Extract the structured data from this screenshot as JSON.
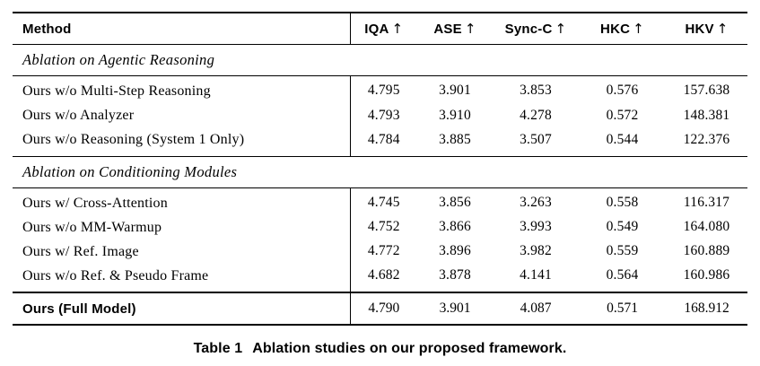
{
  "table": {
    "columns": {
      "method_label": "Method",
      "metrics": [
        {
          "label": "IQA",
          "arrow": "↑"
        },
        {
          "label": "ASE",
          "arrow": "↑"
        },
        {
          "label": "Sync-C",
          "arrow": "↑"
        },
        {
          "label": "HKC",
          "arrow": "↑"
        },
        {
          "label": "HKV",
          "arrow": "↑"
        }
      ]
    },
    "sections": [
      {
        "title": "Ablation on Agentic Reasoning",
        "rows": [
          {
            "method": "Ours w/o Multi-Step Reasoning",
            "values": [
              "4.795",
              "3.901",
              "3.853",
              "0.576",
              "157.638"
            ]
          },
          {
            "method": "Ours w/o Analyzer",
            "values": [
              "4.793",
              "3.910",
              "4.278",
              "0.572",
              "148.381"
            ]
          },
          {
            "method": "Ours w/o Reasoning (System 1 Only)",
            "values": [
              "4.784",
              "3.885",
              "3.507",
              "0.544",
              "122.376"
            ]
          }
        ]
      },
      {
        "title": "Ablation on Conditioning Modules",
        "rows": [
          {
            "method": "Ours w/ Cross-Attention",
            "values": [
              "4.745",
              "3.856",
              "3.263",
              "0.558",
              "116.317"
            ]
          },
          {
            "method": "Ours w/o MM-Warmup",
            "values": [
              "4.752",
              "3.866",
              "3.993",
              "0.549",
              "164.080"
            ]
          },
          {
            "method": "Ours w/ Ref. Image",
            "values": [
              "4.772",
              "3.896",
              "3.982",
              "0.559",
              "160.889"
            ]
          },
          {
            "method": "Ours w/o Ref. & Pseudo Frame",
            "values": [
              "4.682",
              "3.878",
              "4.141",
              "0.564",
              "160.986"
            ]
          }
        ]
      }
    ],
    "final_row": {
      "method": "Ours (Full Model)",
      "values": [
        "4.790",
        "3.901",
        "4.087",
        "0.571",
        "168.912"
      ]
    }
  },
  "caption": {
    "label": "Table 1",
    "text": "Ablation studies on our proposed framework."
  },
  "colors": {
    "text": "#000000",
    "rule": "#000000",
    "background": "#ffffff"
  }
}
